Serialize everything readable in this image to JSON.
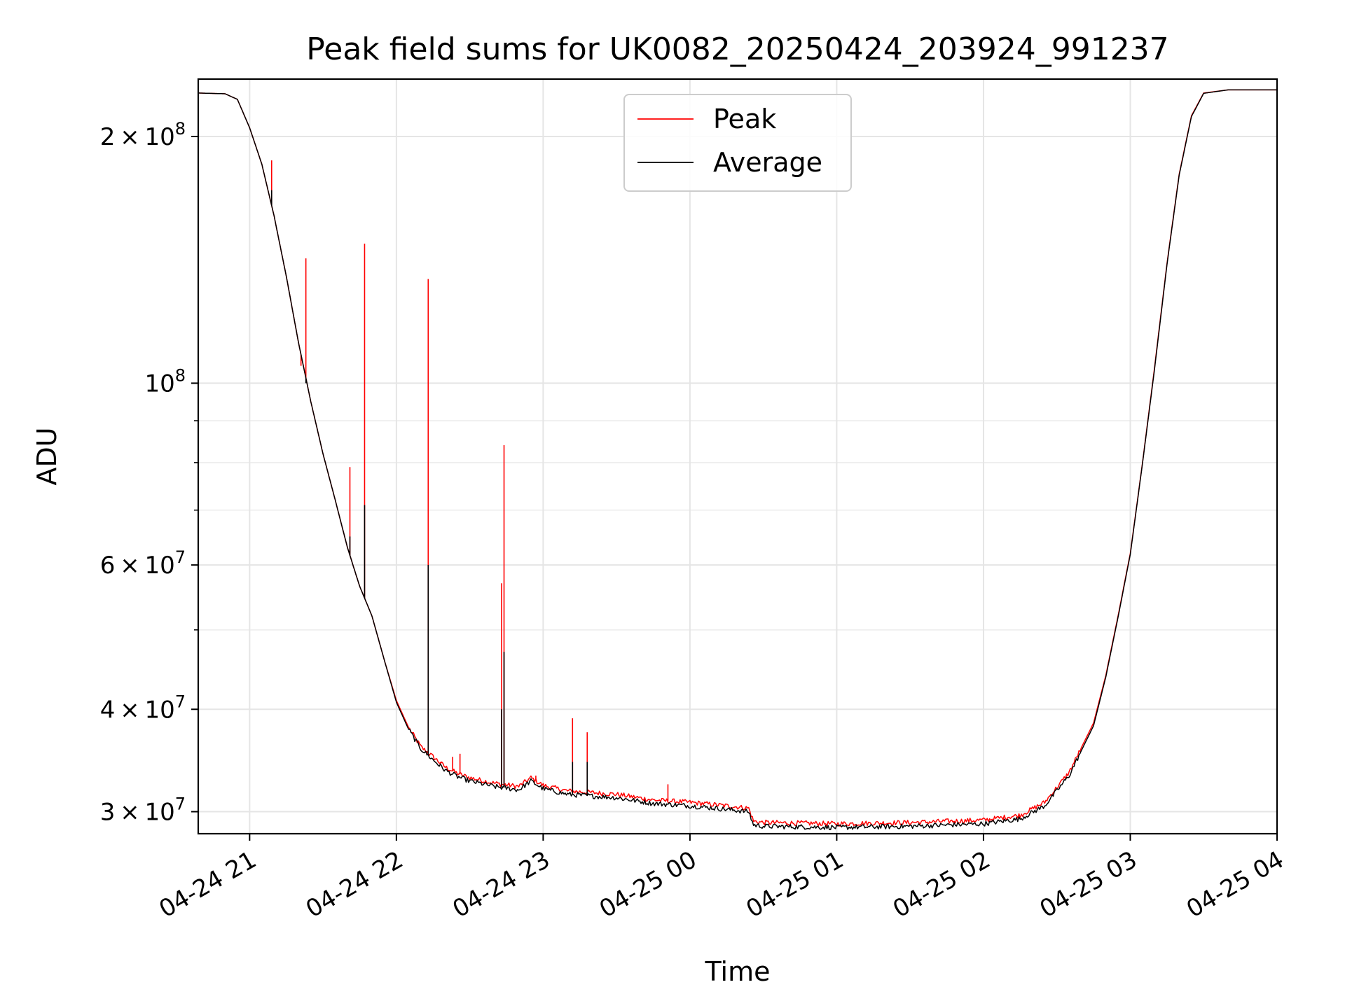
{
  "chart_data": {
    "type": "line",
    "title": "Peak field sums for UK0082_20250424_203924_991237",
    "xlabel": "Time",
    "ylabel": "ADU",
    "yscale": "log",
    "ylim": [
      28200000,
      235000000
    ],
    "xlim": [
      "2025-04-24 20:39",
      "2025-04-25 04:00"
    ],
    "grid": true,
    "legend_position": "top-center",
    "x_ticks": [
      {
        "t": "2025-04-24 21:00",
        "label": "04-24 21"
      },
      {
        "t": "2025-04-24 22:00",
        "label": "04-24 22"
      },
      {
        "t": "2025-04-24 23:00",
        "label": "04-24 23"
      },
      {
        "t": "2025-04-25 00:00",
        "label": "04-25 00"
      },
      {
        "t": "2025-04-25 01:00",
        "label": "04-25 01"
      },
      {
        "t": "2025-04-25 02:00",
        "label": "04-25 02"
      },
      {
        "t": "2025-04-25 03:00",
        "label": "04-25 03"
      },
      {
        "t": "2025-04-25 04:00",
        "label": "04-25 04"
      }
    ],
    "y_ticks_major": [
      {
        "v": 30000000,
        "mant": "3",
        "exp": "7"
      },
      {
        "v": 40000000,
        "mant": "4",
        "exp": "7"
      },
      {
        "v": 60000000,
        "mant": "6",
        "exp": "7"
      },
      {
        "v": 100000000,
        "mant": "",
        "exp": "8"
      },
      {
        "v": 200000000,
        "mant": "2",
        "exp": "8"
      }
    ],
    "y_ticks_minor": [
      50000000,
      70000000,
      80000000,
      90000000
    ],
    "series": [
      {
        "name": "Peak",
        "color": "#ff0000",
        "points": [
          [
            "2025-04-24 20:39",
            226000000
          ],
          [
            "2025-04-24 20:50",
            225500000
          ],
          [
            "2025-04-24 20:55",
            222000000
          ],
          [
            "2025-04-24 21:00",
            205000000
          ],
          [
            "2025-04-24 21:05",
            185000000
          ],
          [
            "2025-04-24 21:10",
            160000000
          ],
          [
            "2025-04-24 21:15",
            135000000
          ],
          [
            "2025-04-24 21:20",
            112000000
          ],
          [
            "2025-04-24 21:25",
            95000000
          ],
          [
            "2025-04-24 21:30",
            82000000
          ],
          [
            "2025-04-24 21:35",
            72000000
          ],
          [
            "2025-04-24 21:40",
            63000000
          ],
          [
            "2025-04-24 21:45",
            56500000
          ],
          [
            "2025-04-24 21:50",
            52000000
          ],
          [
            "2025-04-24 21:55",
            46000000
          ],
          [
            "2025-04-24 22:00",
            41000000
          ],
          [
            "2025-04-24 22:05",
            38000000
          ],
          [
            "2025-04-24 22:10",
            36000000
          ],
          [
            "2025-04-24 22:15",
            35000000
          ],
          [
            "2025-04-24 22:20",
            34000000
          ],
          [
            "2025-04-24 22:25",
            33400000
          ],
          [
            "2025-04-24 22:30",
            33000000
          ],
          [
            "2025-04-24 22:40",
            32500000
          ],
          [
            "2025-04-24 22:50",
            32200000
          ],
          [
            "2025-04-24 22:55",
            33000000
          ],
          [
            "2025-04-24 23:00",
            32300000
          ],
          [
            "2025-04-24 23:10",
            31800000
          ],
          [
            "2025-04-24 23:30",
            31500000
          ],
          [
            "2025-04-24 23:45",
            31000000
          ],
          [
            "2025-04-25 00:00",
            30800000
          ],
          [
            "2025-04-25 00:15",
            30500000
          ],
          [
            "2025-04-25 00:24",
            30300000
          ],
          [
            "2025-04-25 00:26",
            29200000
          ],
          [
            "2025-04-25 00:30",
            29100000
          ],
          [
            "2025-04-25 01:00",
            29000000
          ],
          [
            "2025-04-25 01:30",
            29100000
          ],
          [
            "2025-04-25 02:00",
            29300000
          ],
          [
            "2025-04-25 02:15",
            29700000
          ],
          [
            "2025-04-25 02:25",
            30800000
          ],
          [
            "2025-04-25 02:35",
            33500000
          ],
          [
            "2025-04-25 02:45",
            38500000
          ],
          [
            "2025-04-25 02:50",
            44000000
          ],
          [
            "2025-04-25 02:55",
            52000000
          ],
          [
            "2025-04-25 03:00",
            62000000
          ],
          [
            "2025-04-25 03:05",
            80000000
          ],
          [
            "2025-04-25 03:10",
            105000000
          ],
          [
            "2025-04-25 03:15",
            140000000
          ],
          [
            "2025-04-25 03:20",
            180000000
          ],
          [
            "2025-04-25 03:25",
            212000000
          ],
          [
            "2025-04-25 03:30",
            226000000
          ],
          [
            "2025-04-25 03:40",
            228000000
          ],
          [
            "2025-04-25 04:00",
            228000000
          ]
        ],
        "spikes": [
          [
            "2025-04-24 21:09",
            187000000
          ],
          [
            "2025-04-24 21:21",
            105000000
          ],
          [
            "2025-04-24 21:23",
            142000000
          ],
          [
            "2025-04-24 21:41",
            79000000
          ],
          [
            "2025-04-24 21:47",
            148000000
          ],
          [
            "2025-04-24 22:13",
            134000000
          ],
          [
            "2025-04-24 22:18",
            34500000
          ],
          [
            "2025-04-24 22:23",
            35000000
          ],
          [
            "2025-04-24 22:26",
            35300000
          ],
          [
            "2025-04-24 22:43",
            57000000
          ],
          [
            "2025-04-24 22:44",
            84000000
          ],
          [
            "2025-04-24 22:57",
            33200000
          ],
          [
            "2025-04-24 23:12",
            39000000
          ],
          [
            "2025-04-24 23:18",
            37500000
          ],
          [
            "2025-04-24 23:51",
            32400000
          ]
        ]
      },
      {
        "name": "Average",
        "color": "#000000",
        "points": [
          [
            "2025-04-24 20:39",
            226000000
          ],
          [
            "2025-04-24 20:50",
            225500000
          ],
          [
            "2025-04-24 20:55",
            222000000
          ],
          [
            "2025-04-24 21:00",
            205000000
          ],
          [
            "2025-04-24 21:05",
            185000000
          ],
          [
            "2025-04-24 21:10",
            160000000
          ],
          [
            "2025-04-24 21:15",
            135000000
          ],
          [
            "2025-04-24 21:20",
            112000000
          ],
          [
            "2025-04-24 21:25",
            95000000
          ],
          [
            "2025-04-24 21:30",
            82000000
          ],
          [
            "2025-04-24 21:35",
            72000000
          ],
          [
            "2025-04-24 21:40",
            63000000
          ],
          [
            "2025-04-24 21:45",
            56500000
          ],
          [
            "2025-04-24 21:50",
            52000000
          ],
          [
            "2025-04-24 21:55",
            46000000
          ],
          [
            "2025-04-24 22:00",
            40800000
          ],
          [
            "2025-04-24 22:05",
            37800000
          ],
          [
            "2025-04-24 22:10",
            35800000
          ],
          [
            "2025-04-24 22:15",
            34700000
          ],
          [
            "2025-04-24 22:20",
            33700000
          ],
          [
            "2025-04-24 22:25",
            33100000
          ],
          [
            "2025-04-24 22:30",
            32700000
          ],
          [
            "2025-04-24 22:40",
            32200000
          ],
          [
            "2025-04-24 22:50",
            31900000
          ],
          [
            "2025-04-24 22:55",
            32700000
          ],
          [
            "2025-04-24 23:00",
            32000000
          ],
          [
            "2025-04-24 23:10",
            31500000
          ],
          [
            "2025-04-24 23:30",
            31200000
          ],
          [
            "2025-04-24 23:45",
            30700000
          ],
          [
            "2025-04-25 00:00",
            30500000
          ],
          [
            "2025-04-25 00:15",
            30200000
          ],
          [
            "2025-04-25 00:24",
            30000000
          ],
          [
            "2025-04-25 00:26",
            28900000
          ],
          [
            "2025-04-25 00:30",
            28800000
          ],
          [
            "2025-04-25 01:00",
            28700000
          ],
          [
            "2025-04-25 01:30",
            28800000
          ],
          [
            "2025-04-25 02:00",
            29000000
          ],
          [
            "2025-04-25 02:15",
            29400000
          ],
          [
            "2025-04-25 02:25",
            30500000
          ],
          [
            "2025-04-25 02:35",
            33200000
          ],
          [
            "2025-04-25 02:45",
            38200000
          ],
          [
            "2025-04-25 02:50",
            43800000
          ],
          [
            "2025-04-25 02:55",
            51800000
          ],
          [
            "2025-04-25 03:00",
            61800000
          ],
          [
            "2025-04-25 03:05",
            79800000
          ],
          [
            "2025-04-25 03:10",
            104500000
          ],
          [
            "2025-04-25 03:15",
            139500000
          ],
          [
            "2025-04-25 03:20",
            179500000
          ],
          [
            "2025-04-25 03:25",
            211500000
          ],
          [
            "2025-04-25 03:30",
            225800000
          ],
          [
            "2025-04-25 03:40",
            228000000
          ],
          [
            "2025-04-25 04:00",
            228000000
          ]
        ],
        "spikes": [
          [
            "2025-04-24 21:09",
            172000000
          ],
          [
            "2025-04-24 21:23",
            100000000
          ],
          [
            "2025-04-24 21:41",
            65000000
          ],
          [
            "2025-04-24 21:47",
            71000000
          ],
          [
            "2025-04-24 22:13",
            60000000
          ],
          [
            "2025-04-24 22:43",
            40000000
          ],
          [
            "2025-04-24 22:44",
            47000000
          ],
          [
            "2025-04-24 23:12",
            34500000
          ],
          [
            "2025-04-24 23:18",
            34500000
          ]
        ]
      }
    ]
  }
}
